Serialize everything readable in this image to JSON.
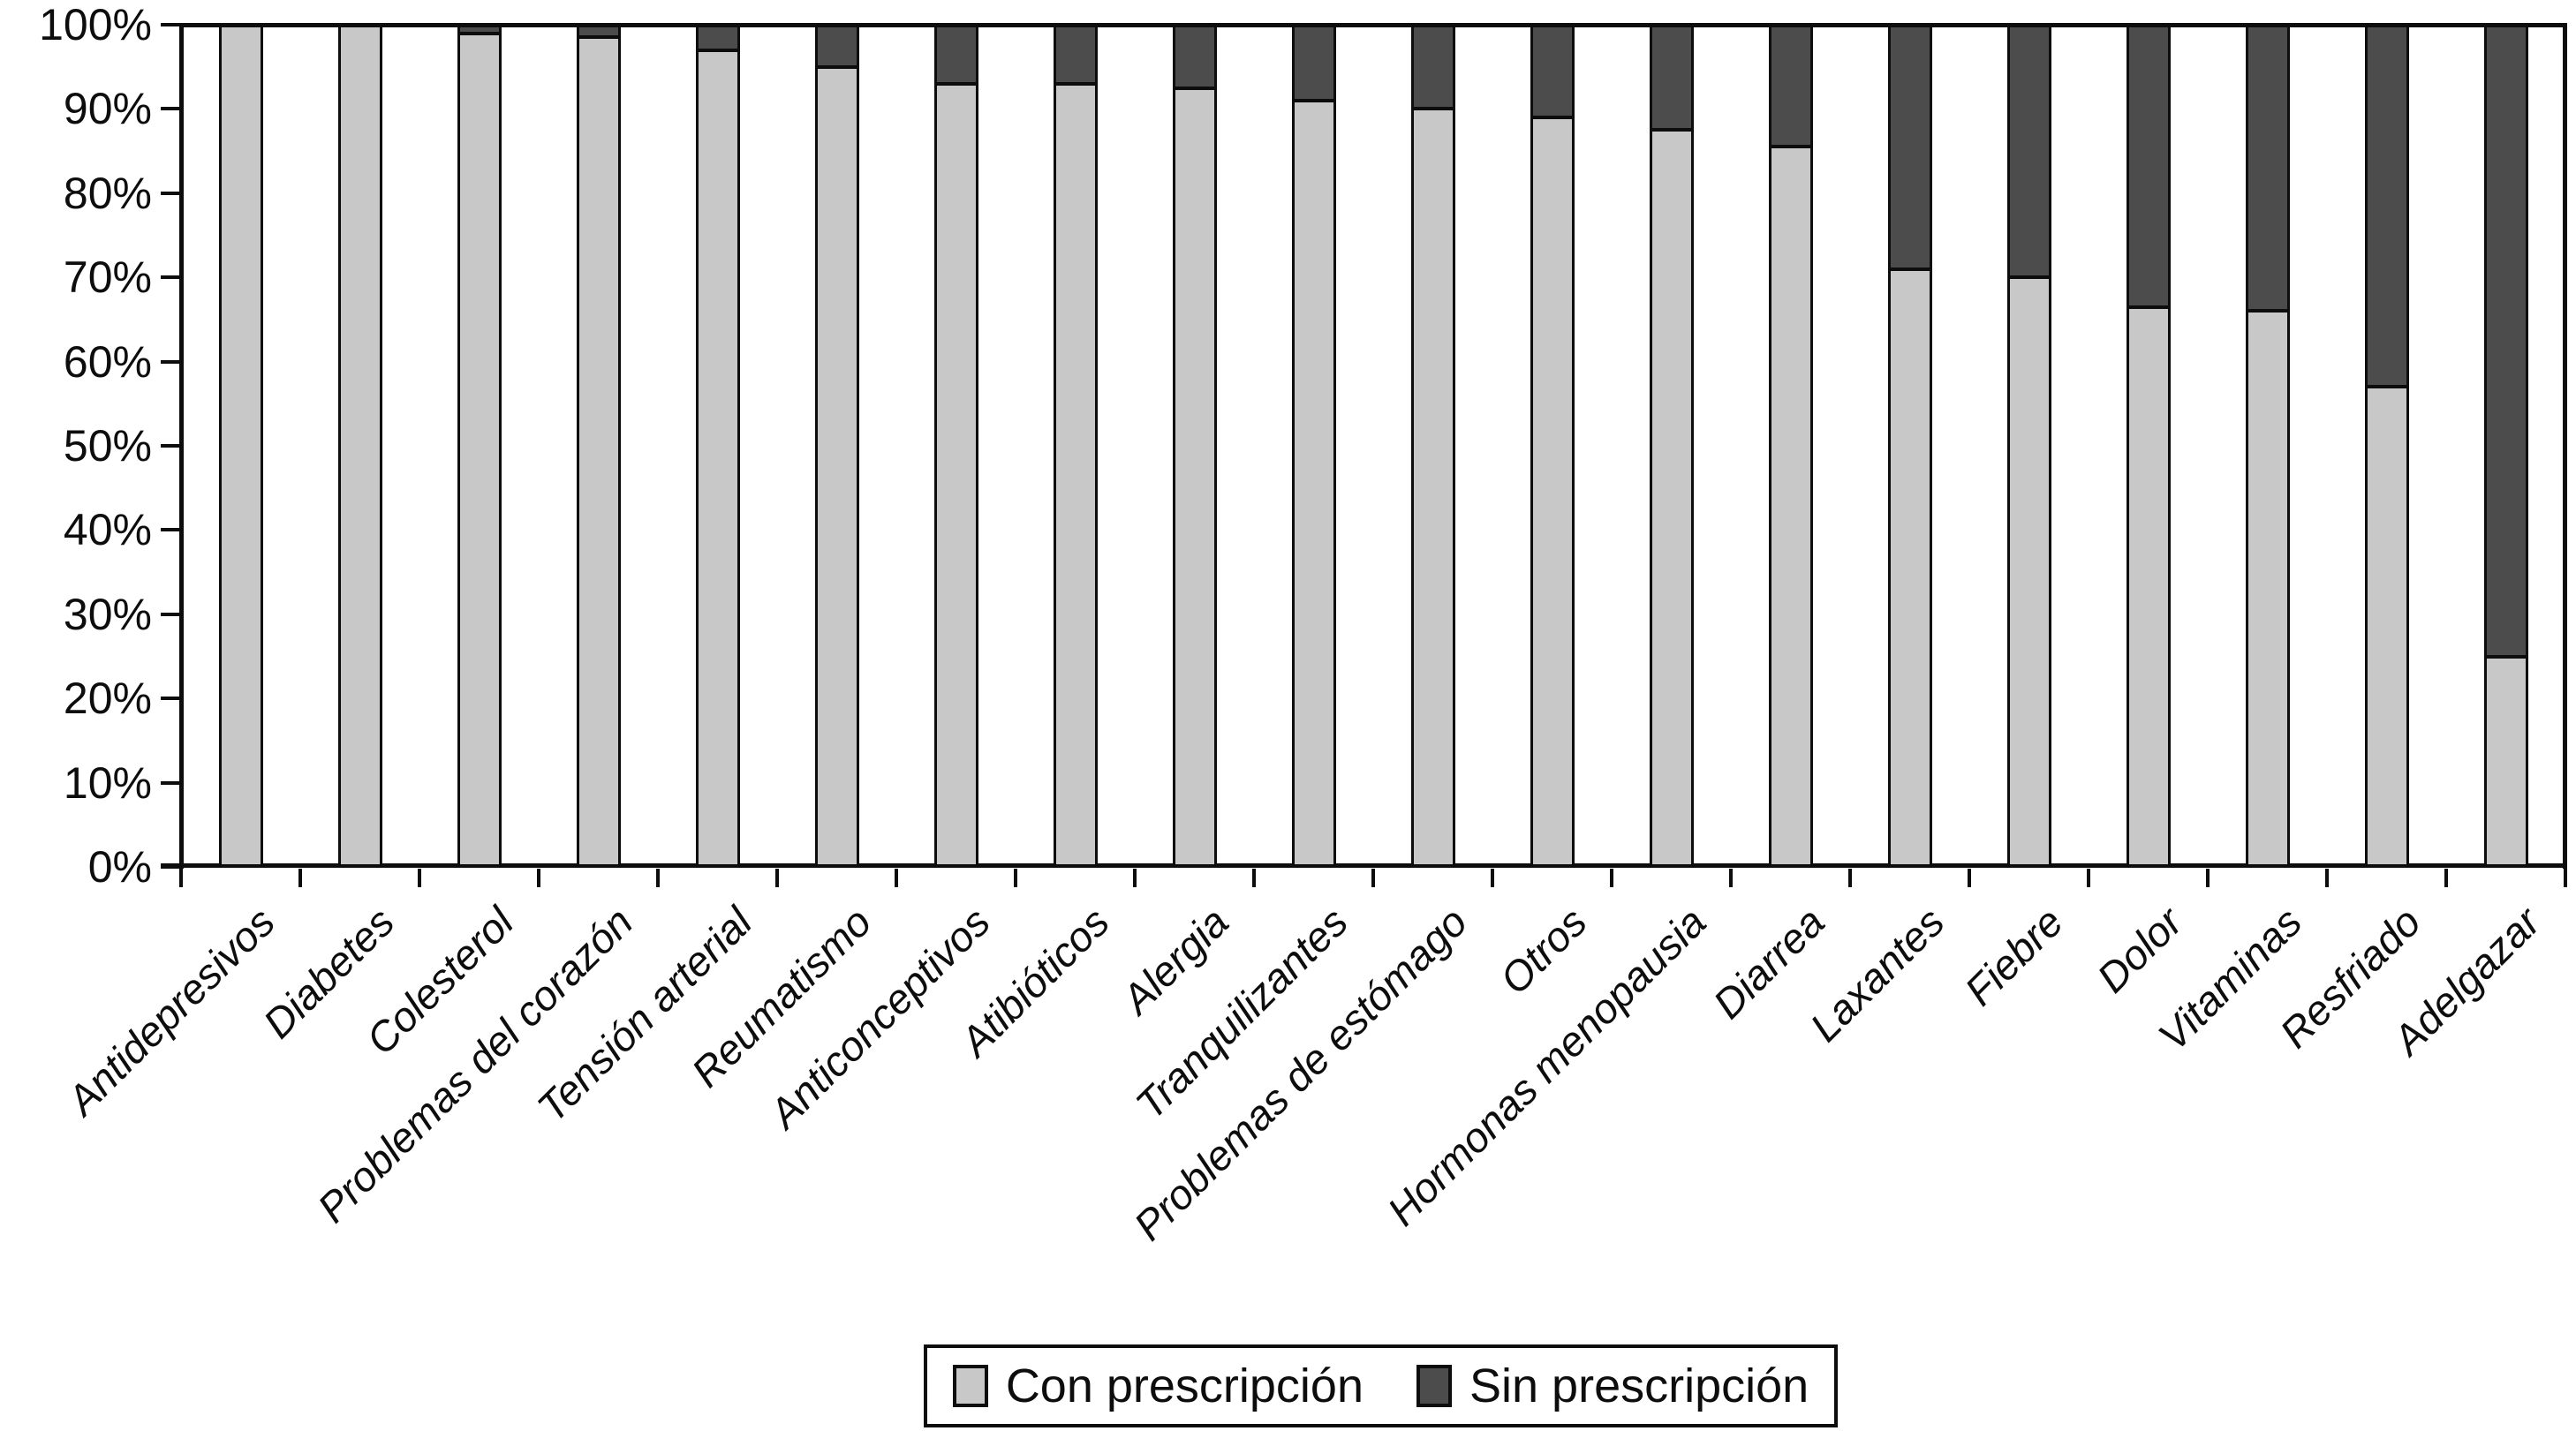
{
  "chart_data": {
    "type": "bar",
    "stacked": true,
    "percent_stacked": true,
    "title": "",
    "xlabel": "",
    "ylabel": "",
    "ylim": [
      0,
      100
    ],
    "yticks": [
      "0%",
      "10%",
      "20%",
      "30%",
      "40%",
      "50%",
      "60%",
      "70%",
      "80%",
      "90%",
      "100%"
    ],
    "grid": false,
    "legend_position": "bottom",
    "categories": [
      "Antidepresivos",
      "Diabetes",
      "Colesterol",
      "Problemas del corazón",
      "Tensión arterial",
      "Reumatismo",
      "Anticonceptivos",
      "Atibióticos",
      "Alergia",
      "Tranquilizantes",
      "Problemas de estómago",
      "Otros",
      "Hormonas menopausia",
      "Diarrea",
      "Laxantes",
      "Fiebre",
      "Dolor",
      "Vitaminas",
      "Resfriado",
      "Adelgazar"
    ],
    "series": [
      {
        "name": "Con prescripción",
        "color": "#c8c8c8",
        "values": [
          100,
          100,
          99,
          98.5,
          97,
          95,
          93,
          93,
          92.5,
          91,
          90,
          89,
          87.5,
          85.5,
          71,
          70,
          66.5,
          66,
          57,
          25
        ]
      },
      {
        "name": "Sin prescripción",
        "color": "#4c4c4c",
        "values": [
          0,
          0,
          1,
          1.5,
          3,
          5,
          7,
          7,
          7.5,
          9,
          10,
          11,
          12.5,
          14.5,
          29,
          30,
          33.5,
          34,
          43,
          75
        ]
      }
    ]
  },
  "axis_color": "#0d0d0d"
}
